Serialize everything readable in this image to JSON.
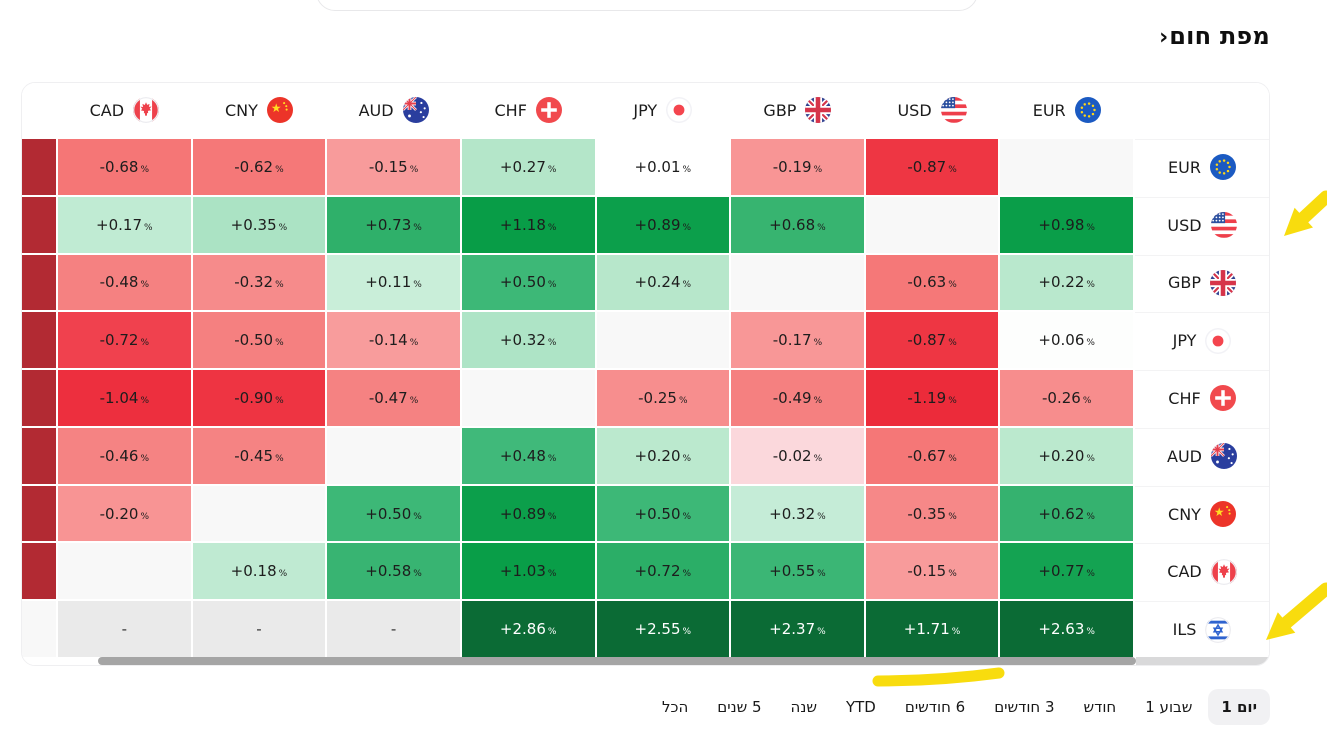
{
  "page": {
    "title": "מפת חום",
    "title_chevron": "‹"
  },
  "heatmap": {
    "columns": [
      {
        "code": "CAD",
        "flag": "canada"
      },
      {
        "code": "CNY",
        "flag": "china"
      },
      {
        "code": "AUD",
        "flag": "australia"
      },
      {
        "code": "CHF",
        "flag": "switzerland"
      },
      {
        "code": "JPY",
        "flag": "japan"
      },
      {
        "code": "GBP",
        "flag": "uk"
      },
      {
        "code": "USD",
        "flag": "usa"
      },
      {
        "code": "EUR",
        "flag": "eu"
      }
    ],
    "rows": [
      {
        "label": "EUR",
        "flag": "eu",
        "strip_bg": "#b22a33",
        "cells": [
          {
            "t": "-0.68",
            "bg": "#f57676"
          },
          {
            "t": "-0.62",
            "bg": "#f57878"
          },
          {
            "t": "-0.15",
            "bg": "#f89b9b"
          },
          {
            "t": "+0.27",
            "bg": "#b4e6c9"
          },
          {
            "t": "+0.01",
            "bg": "#ffffff"
          },
          {
            "t": "-0.19",
            "bg": "#f89595"
          },
          {
            "t": "-0.87",
            "bg": "#ee3643"
          },
          {
            "t": "",
            "bg": "#f8f8f8"
          }
        ]
      },
      {
        "label": "USD",
        "flag": "usa",
        "strip_bg": "#b22a33",
        "cells": [
          {
            "t": "+0.17",
            "bg": "#c0ebd3"
          },
          {
            "t": "+0.35",
            "bg": "#abe3c4"
          },
          {
            "t": "+0.73",
            "bg": "#2fb06a"
          },
          {
            "t": "+1.18",
            "bg": "#089d47"
          },
          {
            "t": "+0.89",
            "bg": "#0c9f4b"
          },
          {
            "t": "+0.68",
            "bg": "#37b470"
          },
          {
            "t": "",
            "bg": "#f8f8f8"
          },
          {
            "t": "+0.98",
            "bg": "#0a9e49"
          }
        ]
      },
      {
        "label": "GBP",
        "flag": "uk",
        "strip_bg": "#b22a33",
        "cells": [
          {
            "t": "-0.48",
            "bg": "#f58181"
          },
          {
            "t": "-0.32",
            "bg": "#f68b8b"
          },
          {
            "t": "+0.11",
            "bg": "#c9eed9"
          },
          {
            "t": "+0.50",
            "bg": "#3db877"
          },
          {
            "t": "+0.24",
            "bg": "#b7e7cb"
          },
          {
            "t": "",
            "bg": "#f8f8f8"
          },
          {
            "t": "-0.63",
            "bg": "#f57878"
          },
          {
            "t": "+0.22",
            "bg": "#b9e8cd"
          }
        ]
      },
      {
        "label": "JPY",
        "flag": "japan",
        "strip_bg": "#b22a33",
        "cells": [
          {
            "t": "-0.72",
            "bg": "#f0414e"
          },
          {
            "t": "-0.50",
            "bg": "#f58080"
          },
          {
            "t": "-0.14",
            "bg": "#f89c9c"
          },
          {
            "t": "+0.32",
            "bg": "#aee4c6"
          },
          {
            "t": "",
            "bg": "#f8f8f8"
          },
          {
            "t": "-0.17",
            "bg": "#f89797"
          },
          {
            "t": "-0.87",
            "bg": "#ee3643"
          },
          {
            "t": "+0.06",
            "bg": "#fdfefd"
          }
        ]
      },
      {
        "label": "CHF",
        "flag": "switzerland",
        "strip_bg": "#b22a33",
        "cells": [
          {
            "t": "-1.04",
            "bg": "#ed2f3e"
          },
          {
            "t": "-0.90",
            "bg": "#ee3442"
          },
          {
            "t": "-0.47",
            "bg": "#f58282"
          },
          {
            "t": "",
            "bg": "#f8f8f8"
          },
          {
            "t": "-0.25",
            "bg": "#f78e8e"
          },
          {
            "t": "-0.49",
            "bg": "#f58080"
          },
          {
            "t": "-1.19",
            "bg": "#ec2b3a"
          },
          {
            "t": "-0.26",
            "bg": "#f78d8d"
          }
        ]
      },
      {
        "label": "AUD",
        "flag": "australia",
        "strip_bg": "#b22a33",
        "cells": [
          {
            "t": "-0.46",
            "bg": "#f58383"
          },
          {
            "t": "-0.45",
            "bg": "#f58383"
          },
          {
            "t": "",
            "bg": "#f8f8f8"
          },
          {
            "t": "+0.48",
            "bg": "#40b97a"
          },
          {
            "t": "+0.20",
            "bg": "#bbe9ce"
          },
          {
            "t": "-0.02",
            "bg": "#fbd8dc"
          },
          {
            "t": "-0.67",
            "bg": "#f57777"
          },
          {
            "t": "+0.20",
            "bg": "#bbe9ce"
          }
        ]
      },
      {
        "label": "CNY",
        "flag": "china",
        "strip_bg": "#b22a33",
        "cells": [
          {
            "t": "-0.20",
            "bg": "#f89494"
          },
          {
            "t": "",
            "bg": "#f8f8f8"
          },
          {
            "t": "+0.50",
            "bg": "#3db877"
          },
          {
            "t": "+0.89",
            "bg": "#0c9f4b"
          },
          {
            "t": "+0.50",
            "bg": "#3db877"
          },
          {
            "t": "+0.32",
            "bg": "#c5ecd7"
          },
          {
            "t": "-0.35",
            "bg": "#f68888"
          },
          {
            "t": "+0.62",
            "bg": "#35b26f"
          }
        ]
      },
      {
        "label": "CAD",
        "flag": "canada",
        "strip_bg": "#b22a33",
        "cells": [
          {
            "t": "",
            "bg": "#f8f8f8"
          },
          {
            "t": "+0.18",
            "bg": "#bfead2"
          },
          {
            "t": "+0.58",
            "bg": "#38b472"
          },
          {
            "t": "+1.03",
            "bg": "#099e48"
          },
          {
            "t": "+0.72",
            "bg": "#2bae67"
          },
          {
            "t": "+0.55",
            "bg": "#3bb675"
          },
          {
            "t": "-0.15",
            "bg": "#f89b9b"
          },
          {
            "t": "+0.77",
            "bg": "#14a352"
          }
        ]
      },
      {
        "label": "ILS",
        "flag": "israel",
        "strip_bg": "#f8f8f8",
        "cells": [
          {
            "t": "-",
            "bg": "#eaeaea"
          },
          {
            "t": "-",
            "bg": "#eaeaea"
          },
          {
            "t": "-",
            "bg": "#eaeaea"
          },
          {
            "t": "+2.86",
            "bg": "#0b6b35",
            "fg": "#ffffff"
          },
          {
            "t": "+2.55",
            "bg": "#0b6b35",
            "fg": "#ffffff"
          },
          {
            "t": "+2.37",
            "bg": "#0b6b35",
            "fg": "#ffffff"
          },
          {
            "t": "+1.71",
            "bg": "#0b6b35",
            "fg": "#ffffff"
          },
          {
            "t": "+2.63",
            "bg": "#0b6b35",
            "fg": "#ffffff"
          }
        ]
      }
    ]
  },
  "tabs": {
    "items": [
      {
        "key": "1d",
        "label": "יום 1",
        "selected": true
      },
      {
        "key": "1w",
        "label": "שבוע 1",
        "selected": false
      },
      {
        "key": "1m",
        "label": "חודש",
        "selected": false
      },
      {
        "key": "3m",
        "label": "3 חודשים",
        "selected": false
      },
      {
        "key": "6m",
        "label": "6 חודשים",
        "selected": false
      },
      {
        "key": "ytd",
        "label": "YTD",
        "selected": false
      },
      {
        "key": "1y",
        "label": "שנה",
        "selected": false
      },
      {
        "key": "5y",
        "label": "5 שנים",
        "selected": false
      },
      {
        "key": "all",
        "label": "הכל",
        "selected": false
      }
    ]
  },
  "scrollbar": {
    "thumb_color": "#a5a5a5",
    "track_right_color": "#d9d9da"
  },
  "annotations": {
    "color": "#f8dc0e",
    "items": [
      {
        "kind": "arrow",
        "name": "usd-row-marker-arrow",
        "tip": [
          1284,
          236
        ],
        "tail": [
          1326,
          197
        ]
      },
      {
        "kind": "arrow",
        "name": "ils-row-marker-arrow",
        "tip": [
          1266,
          640
        ],
        "tail": [
          1326,
          589
        ]
      },
      {
        "kind": "underline",
        "name": "six-months-underline",
        "from": [
          878,
          681
        ],
        "to": [
          999,
          673
        ]
      }
    ]
  },
  "chart_data": {
    "type": "heatmap",
    "title": "מפת חום",
    "x_categories": [
      "CAD",
      "CNY",
      "AUD",
      "CHF",
      "JPY",
      "GBP",
      "USD",
      "EUR"
    ],
    "y_categories": [
      "EUR",
      "USD",
      "GBP",
      "JPY",
      "CHF",
      "AUD",
      "CNY",
      "CAD",
      "ILS"
    ],
    "unit": "%",
    "period_selected": "יום 1",
    "no_data_display": "-",
    "matrix": [
      [
        -0.68,
        -0.62,
        -0.15,
        0.27,
        0.01,
        -0.19,
        -0.87,
        null
      ],
      [
        0.17,
        0.35,
        0.73,
        1.18,
        0.89,
        0.68,
        null,
        0.98
      ],
      [
        -0.48,
        -0.32,
        0.11,
        0.5,
        0.24,
        null,
        -0.63,
        0.22
      ],
      [
        -0.72,
        -0.5,
        -0.14,
        0.32,
        null,
        -0.17,
        -0.87,
        0.06
      ],
      [
        -1.04,
        -0.9,
        -0.47,
        null,
        -0.25,
        -0.49,
        -1.19,
        -0.26
      ],
      [
        -0.46,
        -0.45,
        null,
        0.48,
        0.2,
        -0.02,
        -0.67,
        0.2
      ],
      [
        -0.2,
        null,
        0.5,
        0.89,
        0.5,
        0.32,
        -0.35,
        0.62
      ],
      [
        null,
        0.18,
        0.58,
        1.03,
        0.72,
        0.55,
        -0.15,
        0.77
      ],
      [
        null,
        null,
        null,
        2.86,
        2.55,
        2.37,
        1.71,
        2.63
      ]
    ],
    "color_scale": {
      "strong_negative": "#ee3643",
      "mild_negative": "#f58080",
      "neutral": "#ffffff",
      "mild_positive": "#b5e7ca",
      "strong_positive": "#0c9f4b",
      "ils_row_positive": "#0b6b35",
      "truncated_left_column": "#b22a33"
    },
    "legend_position": "none",
    "grid": false
  }
}
